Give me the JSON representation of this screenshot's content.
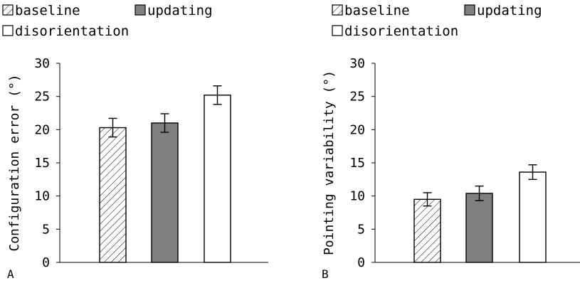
{
  "chart_data": [
    {
      "type": "bar",
      "panel_label": "A",
      "title": "",
      "xlabel": "",
      "ylabel": "Configuration error (°)",
      "ylim": [
        0,
        30
      ],
      "yticks": [
        "0",
        "5",
        "10",
        "15",
        "20",
        "25",
        "30"
      ],
      "grid": false,
      "legend_position": "top",
      "categories": [
        "baseline",
        "updating",
        "disorientation"
      ],
      "values": [
        20.3,
        21.0,
        25.2
      ],
      "errors": [
        1.4,
        1.4,
        1.4
      ],
      "fills": [
        "hatched",
        "#808080",
        "#ffffff"
      ]
    },
    {
      "type": "bar",
      "panel_label": "B",
      "title": "",
      "xlabel": "",
      "ylabel": "Pointing variability (°)",
      "ylim": [
        0,
        30
      ],
      "yticks": [
        "0",
        "5",
        "10",
        "15",
        "20",
        "25",
        "30"
      ],
      "grid": false,
      "legend_position": "top",
      "categories": [
        "baseline",
        "updating",
        "disorientation"
      ],
      "values": [
        9.5,
        10.4,
        13.6
      ],
      "errors": [
        1.0,
        1.1,
        1.1
      ],
      "fills": [
        "hatched",
        "#808080",
        "#ffffff"
      ]
    }
  ]
}
